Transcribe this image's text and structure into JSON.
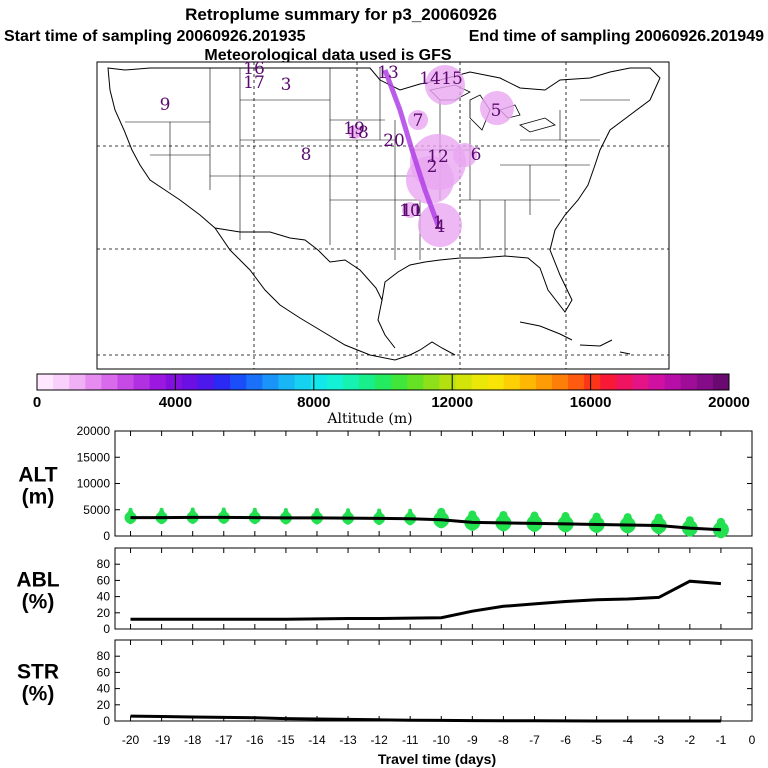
{
  "header": {
    "title": "Retroplume summary for p3_20060926",
    "start_label": "Start time of sampling 20060926.201935",
    "end_label": "End time of sampling 20060926.201949",
    "met_label": "Meteorological data used is GFS"
  },
  "map": {
    "plume_labels": [
      "1",
      "2",
      "3",
      "4",
      "5",
      "6",
      "7",
      "8",
      "9",
      "10",
      "11",
      "12",
      "13",
      "14",
      "15",
      "16",
      "17",
      "18",
      "19",
      "20"
    ],
    "label_color": "#5a0a6e",
    "blob_color": "#e9a6f1"
  },
  "colorbar": {
    "label": "Altitude (m)",
    "ticks": [
      "0",
      "4000",
      "8000",
      "12000",
      "16000",
      "20000"
    ],
    "colors": [
      "#ffe8ff",
      "#f9d0fb",
      "#f0b0f6",
      "#e68cf1",
      "#d96aec",
      "#c64ae6",
      "#b030e2",
      "#9a18e0",
      "#8410de",
      "#6a10e4",
      "#4c18ec",
      "#2a2af4",
      "#1a4ef8",
      "#1a70f8",
      "#1a94f8",
      "#18b6f4",
      "#14d2f0",
      "#12e8ec",
      "#14f2d6",
      "#16f2b2",
      "#18ee8a",
      "#24ea60",
      "#40e63a",
      "#66e224",
      "#8ee01a",
      "#b4e010",
      "#d2e40a",
      "#eae808",
      "#f8e406",
      "#fcd004",
      "#feb804",
      "#fe9c06",
      "#fe7e0a",
      "#fe5a10",
      "#fc3418",
      "#f81838",
      "#f01460",
      "#e41486",
      "#d010a0",
      "#b80ea8",
      "#9e0c98",
      "#840c88",
      "#6a0a70"
    ]
  },
  "chart_data": [
    {
      "type": "line",
      "name": "ALT",
      "ylabel": "ALT (m)",
      "ylabel_line1": "ALT",
      "ylabel_line2": "(m)",
      "ylim": [
        0,
        20000
      ],
      "yticks": [
        "0",
        "5000",
        "10000",
        "15000",
        "20000"
      ],
      "x": [
        -20,
        -19,
        -18,
        -17,
        -16,
        -15,
        -14,
        -13,
        -12,
        -11,
        -10,
        -9,
        -8,
        -7,
        -6,
        -5,
        -4,
        -3,
        -2,
        -1
      ],
      "values": [
        3500,
        3500,
        3550,
        3550,
        3500,
        3450,
        3450,
        3400,
        3350,
        3300,
        3100,
        2600,
        2500,
        2400,
        2300,
        2200,
        2100,
        2000,
        1500,
        1200
      ],
      "scatter_color": "#22e050"
    },
    {
      "type": "line",
      "name": "ABL",
      "ylabel": "ABL (%)",
      "ylabel_line1": "ABL",
      "ylabel_line2": "(%)",
      "ylim": [
        0,
        100
      ],
      "yticks": [
        "0",
        "20",
        "40",
        "60",
        "80"
      ],
      "x": [
        -20,
        -19,
        -18,
        -17,
        -16,
        -15,
        -14,
        -13,
        -12,
        -11,
        -10,
        -9,
        -8,
        -7,
        -6,
        -5,
        -4,
        -3,
        -2,
        -1
      ],
      "values": [
        12,
        12,
        12,
        12,
        12,
        12,
        12.5,
        13,
        13,
        13.5,
        14,
        22,
        28,
        31,
        34,
        36,
        37,
        39,
        59,
        56
      ]
    },
    {
      "type": "line",
      "name": "STR",
      "ylabel": "STR (%)",
      "ylabel_line1": "STR",
      "ylabel_line2": "(%)",
      "ylim": [
        0,
        100
      ],
      "yticks": [
        "0",
        "20",
        "40",
        "60",
        "80"
      ],
      "x": [
        -20,
        -19,
        -18,
        -17,
        -16,
        -15,
        -14,
        -13,
        -12,
        -11,
        -10,
        -9,
        -8,
        -7,
        -6,
        -5,
        -4,
        -3,
        -2,
        -1
      ],
      "values": [
        6,
        5.5,
        5,
        4.5,
        4,
        3,
        2.5,
        2,
        1.5,
        1,
        0.8,
        0.5,
        0.3,
        0.2,
        0.1,
        0,
        0,
        0,
        0,
        0
      ]
    }
  ],
  "x_axis": {
    "label": "Travel time (days)",
    "ticks": [
      "-20",
      "-19",
      "-18",
      "-17",
      "-16",
      "-15",
      "-14",
      "-13",
      "-12",
      "-11",
      "-10",
      "-9",
      "-8",
      "-7",
      "-6",
      "-5",
      "-4",
      "-3",
      "-2",
      "-1",
      "0"
    ]
  }
}
